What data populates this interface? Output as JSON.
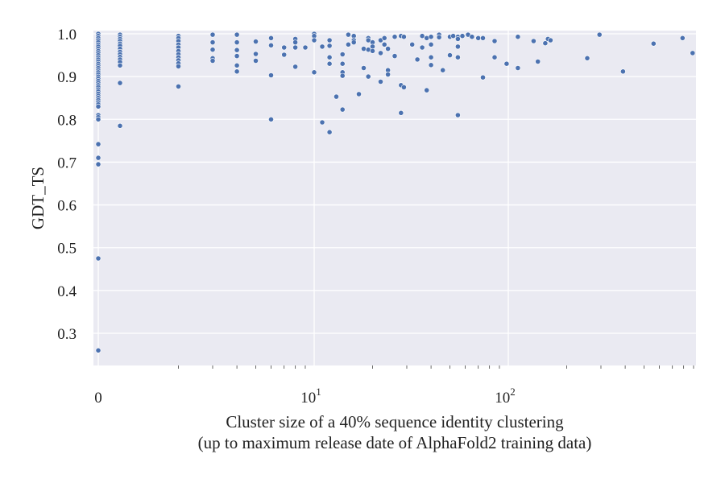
{
  "chart_data": {
    "type": "scatter",
    "title": "",
    "xlabel_lines": [
      "Cluster size of a 40% sequence identity clustering",
      "(up to maximum release date of AlphaFold2 training data)"
    ],
    "ylabel": "GDT_TS",
    "xscale": "symlog",
    "xlim": [
      0,
      900
    ],
    "ylim": [
      0.22,
      1.005
    ],
    "grid": true,
    "background": "#eaeaf2",
    "point_color": "#4c72b0",
    "x_ticks": [
      {
        "value": 0,
        "base": "0",
        "exp": ""
      },
      {
        "value": 10,
        "base": "10",
        "exp": "1"
      },
      {
        "value": 100,
        "base": "10",
        "exp": "2"
      }
    ],
    "y_ticks": [
      "1.0",
      "0.9",
      "0.8",
      "0.7",
      "0.6",
      "0.5",
      "0.4",
      "0.3"
    ],
    "points": [
      [
        0,
        1.0
      ],
      [
        0,
        0.995
      ],
      [
        0,
        0.99
      ],
      [
        0,
        0.985
      ],
      [
        0,
        0.98
      ],
      [
        0,
        0.975
      ],
      [
        0,
        0.97
      ],
      [
        0,
        0.965
      ],
      [
        0,
        0.96
      ],
      [
        0,
        0.955
      ],
      [
        0,
        0.95
      ],
      [
        0,
        0.945
      ],
      [
        0,
        0.94
      ],
      [
        0,
        0.935
      ],
      [
        0,
        0.93
      ],
      [
        0,
        0.925
      ],
      [
        0,
        0.92
      ],
      [
        0,
        0.915
      ],
      [
        0,
        0.91
      ],
      [
        0,
        0.905
      ],
      [
        0,
        0.9
      ],
      [
        0,
        0.895
      ],
      [
        0,
        0.89
      ],
      [
        0,
        0.885
      ],
      [
        0,
        0.88
      ],
      [
        0,
        0.875
      ],
      [
        0,
        0.87
      ],
      [
        0,
        0.865
      ],
      [
        0,
        0.86
      ],
      [
        0,
        0.855
      ],
      [
        0,
        0.85
      ],
      [
        0,
        0.845
      ],
      [
        0,
        0.84
      ],
      [
        0,
        0.835
      ],
      [
        0,
        0.83
      ],
      [
        0,
        0.81
      ],
      [
        0,
        0.805
      ],
      [
        0,
        0.8
      ],
      [
        0,
        0.742
      ],
      [
        0,
        0.71
      ],
      [
        0,
        0.695
      ],
      [
        0,
        0.475
      ],
      [
        0,
        0.26
      ],
      [
        1,
        0.998
      ],
      [
        1,
        0.993
      ],
      [
        1,
        0.988
      ],
      [
        1,
        0.983
      ],
      [
        1,
        0.977
      ],
      [
        1,
        0.972
      ],
      [
        1,
        0.965
      ],
      [
        1,
        0.958
      ],
      [
        1,
        0.952
      ],
      [
        1,
        0.946
      ],
      [
        1,
        0.94
      ],
      [
        1,
        0.934
      ],
      [
        1,
        0.926
      ],
      [
        1,
        0.885
      ],
      [
        1,
        0.785
      ],
      [
        2,
        0.995
      ],
      [
        2,
        0.99
      ],
      [
        2,
        0.983
      ],
      [
        2,
        0.975
      ],
      [
        2,
        0.968
      ],
      [
        2,
        0.96
      ],
      [
        2,
        0.952
      ],
      [
        2,
        0.945
      ],
      [
        2,
        0.938
      ],
      [
        2,
        0.931
      ],
      [
        2,
        0.924
      ],
      [
        2,
        0.877
      ],
      [
        3,
        0.998
      ],
      [
        3,
        0.98
      ],
      [
        3,
        0.963
      ],
      [
        3,
        0.943
      ],
      [
        3,
        0.937
      ],
      [
        4,
        0.998
      ],
      [
        4,
        0.98
      ],
      [
        4,
        0.962
      ],
      [
        4,
        0.948
      ],
      [
        4,
        0.926
      ],
      [
        4,
        0.912
      ],
      [
        5,
        0.982
      ],
      [
        5,
        0.953
      ],
      [
        5,
        0.937
      ],
      [
        6,
        0.99
      ],
      [
        6,
        0.973
      ],
      [
        6,
        0.903
      ],
      [
        6,
        0.8
      ],
      [
        7,
        0.968
      ],
      [
        7,
        0.951
      ],
      [
        8,
        0.988
      ],
      [
        8,
        0.98
      ],
      [
        8,
        0.968
      ],
      [
        8,
        0.923
      ],
      [
        9,
        0.968
      ],
      [
        10,
        1.0
      ],
      [
        10,
        0.995
      ],
      [
        10,
        0.985
      ],
      [
        10,
        0.91
      ],
      [
        11,
        0.97
      ],
      [
        11,
        0.793
      ],
      [
        12,
        0.985
      ],
      [
        12,
        0.972
      ],
      [
        12,
        0.945
      ],
      [
        12,
        0.93
      ],
      [
        12,
        0.77
      ],
      [
        13,
        0.853
      ],
      [
        14,
        0.952
      ],
      [
        14,
        0.93
      ],
      [
        14,
        0.91
      ],
      [
        14,
        0.902
      ],
      [
        14,
        0.823
      ],
      [
        15,
        0.998
      ],
      [
        15,
        0.975
      ],
      [
        16,
        0.995
      ],
      [
        16,
        0.985
      ],
      [
        16,
        0.98
      ],
      [
        17,
        0.859
      ],
      [
        18,
        0.965
      ],
      [
        18,
        0.92
      ],
      [
        19,
        0.99
      ],
      [
        19,
        0.985
      ],
      [
        19,
        0.963
      ],
      [
        19,
        0.9
      ],
      [
        20,
        0.98
      ],
      [
        20,
        0.97
      ],
      [
        20,
        0.96
      ],
      [
        22,
        0.985
      ],
      [
        22,
        0.955
      ],
      [
        22,
        0.888
      ],
      [
        23,
        0.99
      ],
      [
        23,
        0.975
      ],
      [
        24,
        0.965
      ],
      [
        24,
        0.915
      ],
      [
        24,
        0.905
      ],
      [
        26,
        0.993
      ],
      [
        26,
        0.948
      ],
      [
        28,
        0.995
      ],
      [
        28,
        0.88
      ],
      [
        28,
        0.815
      ],
      [
        29,
        0.993
      ],
      [
        29,
        0.875
      ],
      [
        32,
        0.975
      ],
      [
        34,
        0.94
      ],
      [
        36,
        0.995
      ],
      [
        36,
        0.968
      ],
      [
        38,
        0.99
      ],
      [
        38,
        0.868
      ],
      [
        40,
        0.993
      ],
      [
        40,
        0.975
      ],
      [
        40,
        0.945
      ],
      [
        40,
        0.927
      ],
      [
        44,
        0.998
      ],
      [
        44,
        0.992
      ],
      [
        46,
        0.915
      ],
      [
        50,
        0.993
      ],
      [
        50,
        0.95
      ],
      [
        52,
        0.995
      ],
      [
        55,
        0.993
      ],
      [
        55,
        0.988
      ],
      [
        55,
        0.97
      ],
      [
        55,
        0.945
      ],
      [
        55,
        0.81
      ],
      [
        58,
        0.995
      ],
      [
        62,
        0.998
      ],
      [
        65,
        0.993
      ],
      [
        70,
        0.99
      ],
      [
        74,
        0.99
      ],
      [
        74,
        0.898
      ],
      [
        85,
        0.983
      ],
      [
        85,
        0.945
      ],
      [
        98,
        0.93
      ],
      [
        112,
        0.993
      ],
      [
        112,
        0.92
      ],
      [
        135,
        0.983
      ],
      [
        142,
        0.935
      ],
      [
        155,
        0.978
      ],
      [
        160,
        0.988
      ],
      [
        165,
        0.985
      ],
      [
        255,
        0.943
      ],
      [
        295,
        0.998
      ],
      [
        390,
        0.912
      ],
      [
        560,
        0.977
      ],
      [
        790,
        0.99
      ],
      [
        890,
        0.955
      ]
    ]
  }
}
